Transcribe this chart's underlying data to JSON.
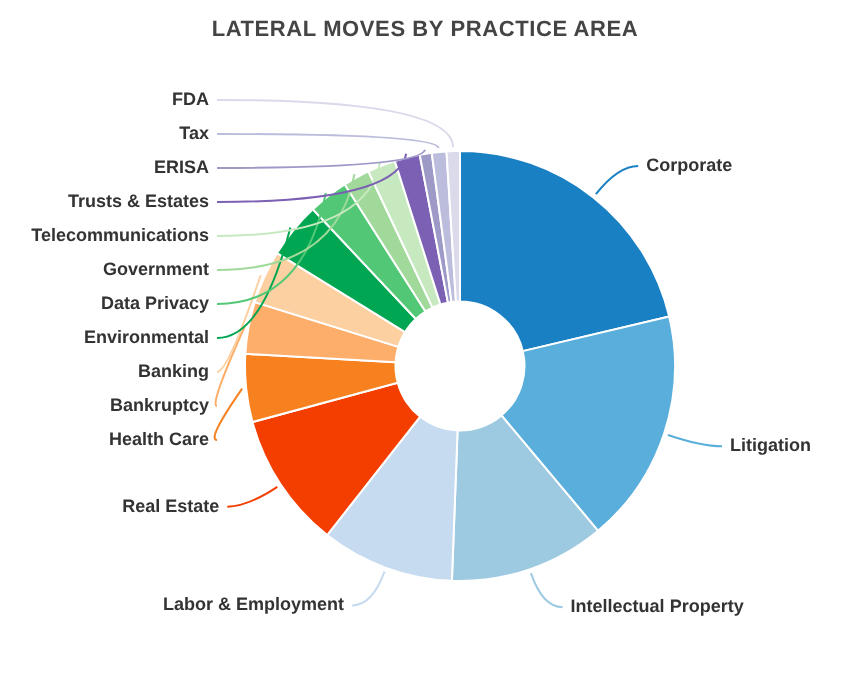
{
  "chart_data": {
    "type": "donut",
    "title": "LATERAL MOVES BY PRACTICE AREA",
    "categories": [
      "Corporate",
      "Litigation",
      "Intellectual Property",
      "Labor & Employment",
      "Real Estate",
      "Health Care",
      "Bankruptcy",
      "Banking",
      "Environmental",
      "Data Privacy",
      "Government",
      "Telecommunications",
      "Trusts & Estates",
      "ERISA",
      "Tax",
      "FDA"
    ],
    "values": [
      21.3,
      17.6,
      11.7,
      10,
      10.2,
      5.1,
      3.9,
      4.0,
      4.2,
      3.0,
      2.0,
      2.1,
      1.9,
      0.9,
      1.1,
      1.0
    ],
    "colors": [
      "#1a80c4",
      "#5aaedb",
      "#9ecae1",
      "#c6dbef",
      "#f33e00",
      "#f7811f",
      "#fdae6b",
      "#fdd0a2",
      "#00a651",
      "#52c876",
      "#a1d99b",
      "#c7e9c0",
      "#7b60b4",
      "#9e9ac8",
      "#bcbddc",
      "#dadaeb"
    ]
  }
}
